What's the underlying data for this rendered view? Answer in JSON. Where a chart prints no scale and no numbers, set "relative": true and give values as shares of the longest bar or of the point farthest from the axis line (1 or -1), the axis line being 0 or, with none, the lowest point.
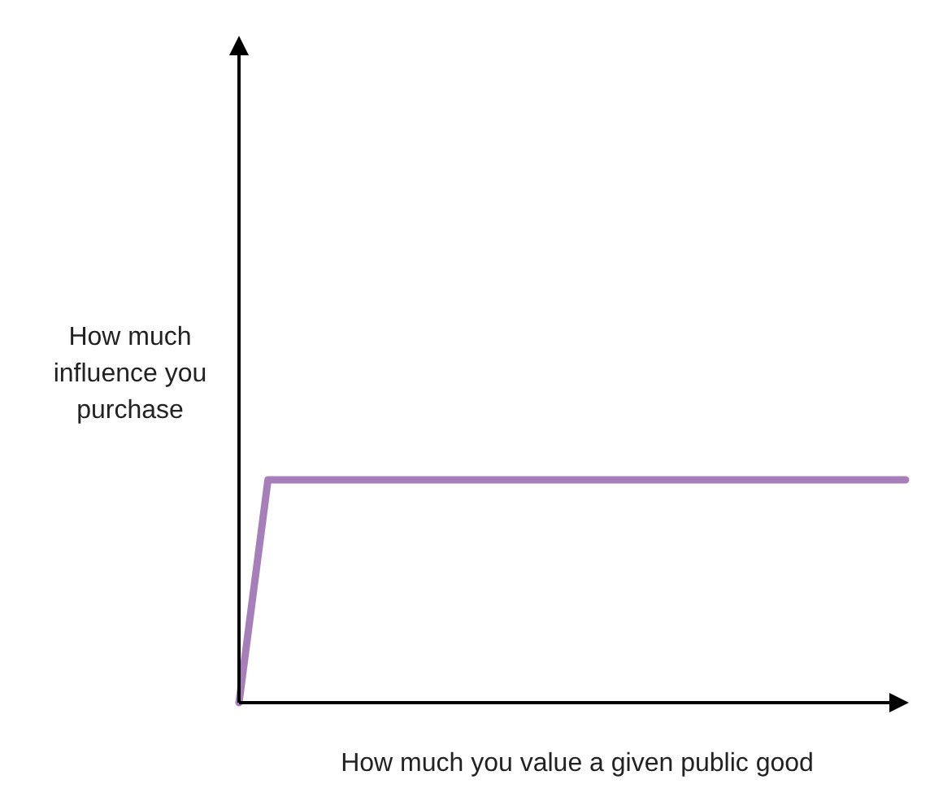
{
  "chart_data": {
    "type": "line",
    "relative": true,
    "xlabel": "How much you value a given public good",
    "ylabel": "How much influence you purchase",
    "categories": [
      null,
      null,
      null,
      null,
      null,
      null,
      null,
      null,
      null,
      null,
      null,
      null,
      null,
      null,
      null,
      null,
      null,
      null,
      null,
      null,
      null,
      null,
      null,
      null
    ],
    "series": [
      {
        "color": "#a67fba",
        "values": [
          0,
          1,
          1,
          1,
          1,
          1,
          1,
          1,
          1,
          1,
          1,
          1,
          1,
          1,
          1,
          1,
          1,
          1,
          1,
          1,
          1,
          1,
          1,
          1
        ]
      }
    ]
  }
}
